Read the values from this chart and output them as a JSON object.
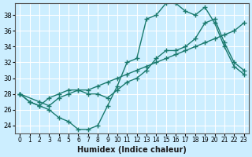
{
  "xlabel": "Humidex (Indice chaleur)",
  "ylabel": "",
  "bg_color": "#cceeff",
  "grid_color": "#ffffff",
  "line_color": "#1a7a6e",
  "xlim": [
    -0.5,
    23.5
  ],
  "ylim": [
    23,
    39.5
  ],
  "yticks": [
    24,
    26,
    28,
    30,
    32,
    34,
    36,
    38
  ],
  "xticks": [
    0,
    1,
    2,
    3,
    4,
    5,
    6,
    7,
    8,
    9,
    10,
    11,
    12,
    13,
    14,
    15,
    16,
    17,
    18,
    19,
    20,
    21,
    22,
    23
  ],
  "line1_x": [
    0,
    1,
    2,
    3,
    4,
    5,
    6,
    7,
    8,
    9,
    10,
    11,
    12,
    13,
    14,
    15,
    16,
    17,
    18,
    19,
    20,
    21,
    22,
    23
  ],
  "line1_y": [
    28,
    27,
    26.5,
    26,
    25,
    24.5,
    23.5,
    23.5,
    24,
    26.5,
    29,
    32,
    32.5,
    37.5,
    38,
    39.5,
    39.5,
    38.5,
    38,
    39,
    37,
    34,
    31.5,
    30.5
  ],
  "line2_x": [
    0,
    1,
    2,
    3,
    4,
    5,
    6,
    7,
    8,
    9,
    10,
    11,
    12,
    13,
    14,
    15,
    16,
    17,
    18,
    19,
    20,
    21,
    22,
    23
  ],
  "line2_y": [
    28,
    27,
    26.5,
    27.5,
    28,
    28.5,
    28.5,
    28.5,
    29,
    29.5,
    30,
    30.5,
    31,
    31.5,
    32,
    32.5,
    33,
    33.5,
    34,
    34.5,
    35,
    35.5,
    36,
    37
  ],
  "line3_x": [
    0,
    2,
    3,
    4,
    5,
    6,
    7,
    8,
    9,
    10,
    11,
    12,
    13,
    14,
    15,
    16,
    17,
    18,
    19,
    20,
    21,
    22,
    23
  ],
  "line3_y": [
    28,
    27,
    26.5,
    27.5,
    28,
    28.5,
    28,
    28,
    27.5,
    28.5,
    29.5,
    30,
    31,
    32.5,
    33.5,
    33.5,
    34,
    35,
    37,
    37.5,
    34.5,
    32,
    31
  ]
}
